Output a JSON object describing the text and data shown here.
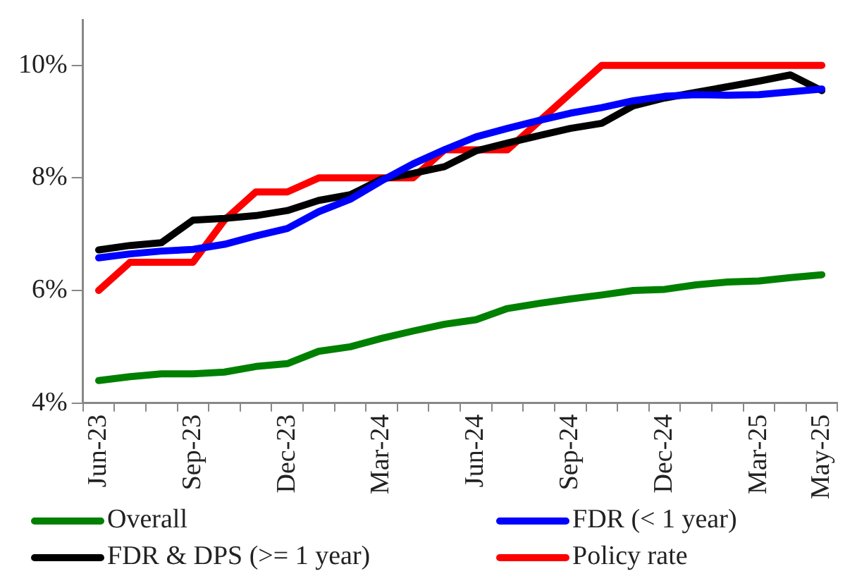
{
  "chart_data": {
    "type": "line",
    "categories": [
      "Jun-23",
      null,
      null,
      "Sep-23",
      null,
      null,
      "Dec-23",
      null,
      null,
      "Mar-24",
      null,
      null,
      "Jun-24",
      null,
      null,
      "Sep-24",
      null,
      null,
      "Dec-24",
      null,
      null,
      "Mar-25",
      null,
      "May-25"
    ],
    "series": [
      {
        "name": "Overall",
        "color": "#008000",
        "values": [
          4.4,
          4.47,
          4.52,
          4.52,
          4.55,
          4.65,
          4.7,
          4.92,
          5.0,
          5.15,
          5.28,
          5.4,
          5.48,
          5.68,
          5.77,
          5.85,
          5.92,
          6.0,
          6.02,
          6.1,
          6.15,
          6.17,
          6.23,
          6.28
        ]
      },
      {
        "name": "FDR (< 1 year)",
        "color": "#0000ff",
        "values": [
          6.58,
          6.65,
          6.7,
          6.73,
          6.82,
          6.97,
          7.1,
          7.4,
          7.62,
          7.95,
          8.25,
          8.5,
          8.73,
          8.88,
          9.02,
          9.15,
          9.25,
          9.37,
          9.45,
          9.48,
          9.47,
          9.48,
          9.53,
          9.58
        ]
      },
      {
        "name": "FDR & DPS (>= 1 year)",
        "color": "#000000",
        "values": [
          6.72,
          6.8,
          6.85,
          7.25,
          7.28,
          7.33,
          7.42,
          7.6,
          7.7,
          7.98,
          8.08,
          8.2,
          8.48,
          8.62,
          8.75,
          8.88,
          8.97,
          9.28,
          9.42,
          9.52,
          9.62,
          9.72,
          9.83,
          9.55
        ]
      },
      {
        "name": "Policy rate",
        "color": "#ff0000",
        "values": [
          6.0,
          6.5,
          6.5,
          6.5,
          7.25,
          7.75,
          7.75,
          8.0,
          8.0,
          8.0,
          8.0,
          8.5,
          8.5,
          8.5,
          9.0,
          9.5,
          10,
          10,
          10,
          10,
          10,
          10,
          10,
          10
        ]
      }
    ],
    "ylim": [
      4,
      10.8
    ],
    "yticks": [
      {
        "value": 4,
        "label": "4%"
      },
      {
        "value": 6,
        "label": "6%"
      },
      {
        "value": 8,
        "label": "8%"
      },
      {
        "value": 10,
        "label": "10%"
      }
    ],
    "grid": false,
    "legend": "bottom",
    "marker": "none",
    "line_style": "solid"
  }
}
